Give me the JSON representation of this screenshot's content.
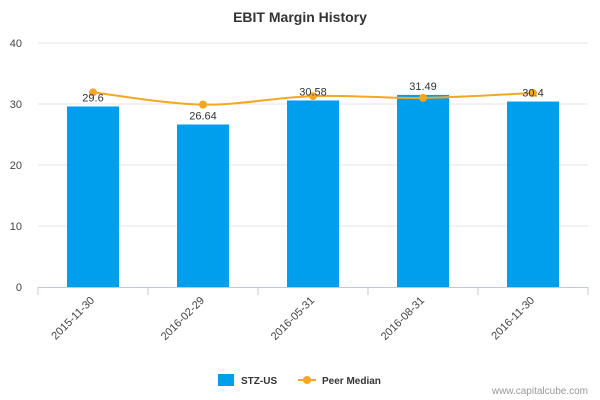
{
  "chart_data": {
    "type": "bar",
    "title": "EBIT Margin History",
    "categories": [
      "2015-11-30",
      "2016-02-29",
      "2016-05-31",
      "2016-08-31",
      "2016-11-30"
    ],
    "series": [
      {
        "name": "STZ-US",
        "kind": "bar",
        "color": "#009fee",
        "values": [
          29.6,
          26.64,
          30.58,
          31.49,
          30.4
        ],
        "labels": [
          "29.6",
          "26.64",
          "30.58",
          "31.49",
          "30.4"
        ]
      },
      {
        "name": "Peer Median",
        "kind": "line",
        "color": "#f5a623",
        "values": [
          31.9,
          29.9,
          31.3,
          31.0,
          31.8
        ]
      }
    ],
    "yticks": [
      "0",
      "10",
      "20",
      "30",
      "40"
    ],
    "ylim": [
      0,
      40
    ],
    "xlabel": "",
    "ylabel": "",
    "legend": "bottom-center"
  },
  "credit": "www.capitalcube.com"
}
